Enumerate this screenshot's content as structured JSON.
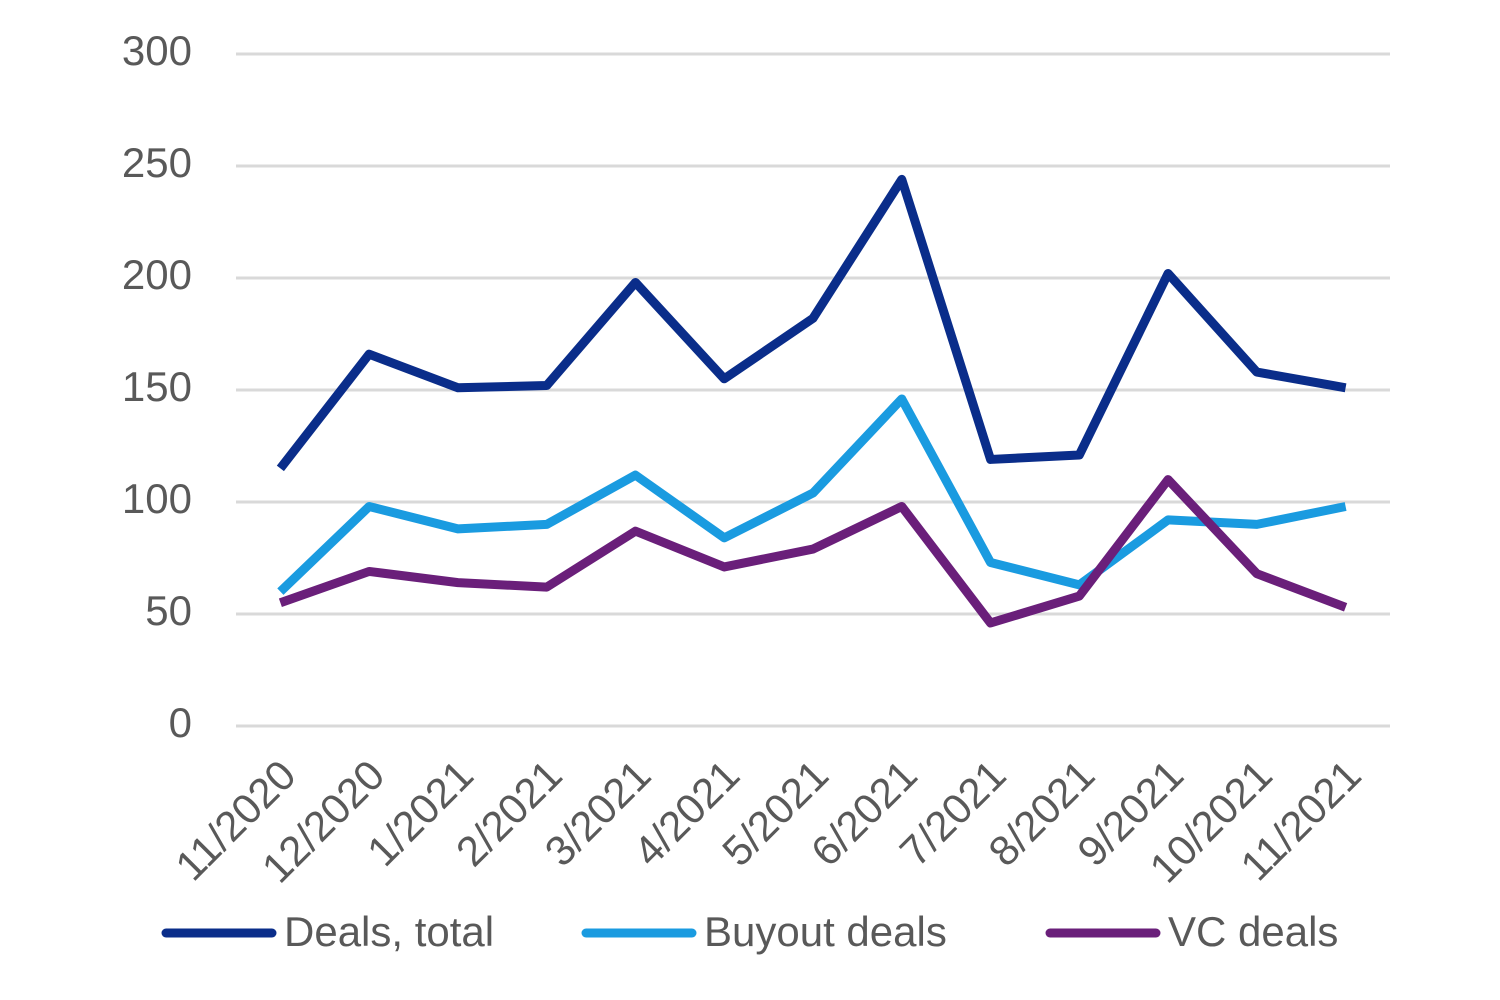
{
  "chart_data": {
    "type": "line",
    "categories": [
      "11/2020",
      "12/2020",
      "1/2021",
      "2/2021",
      "3/2021",
      "4/2021",
      "5/2021",
      "6/2021",
      "7/2021",
      "8/2021",
      "9/2021",
      "10/2021",
      "11/2021"
    ],
    "series": [
      {
        "name": "Deals, total",
        "color": "#0a2d8a",
        "values": [
          115,
          166,
          151,
          152,
          198,
          155,
          182,
          244,
          119,
          121,
          202,
          158,
          151
        ]
      },
      {
        "name": "Buyout deals",
        "color": "#1a9be0",
        "values": [
          60,
          98,
          88,
          90,
          112,
          84,
          104,
          146,
          73,
          63,
          92,
          90,
          98
        ]
      },
      {
        "name": "VC deals",
        "color": "#6a1f7a",
        "values": [
          55,
          69,
          64,
          62,
          87,
          71,
          79,
          98,
          46,
          58,
          110,
          68,
          53
        ]
      }
    ],
    "ylim": [
      0,
      300
    ],
    "yticks": [
      0,
      50,
      100,
      150,
      200,
      250,
      300
    ],
    "grid": true,
    "legend": "bottom"
  }
}
